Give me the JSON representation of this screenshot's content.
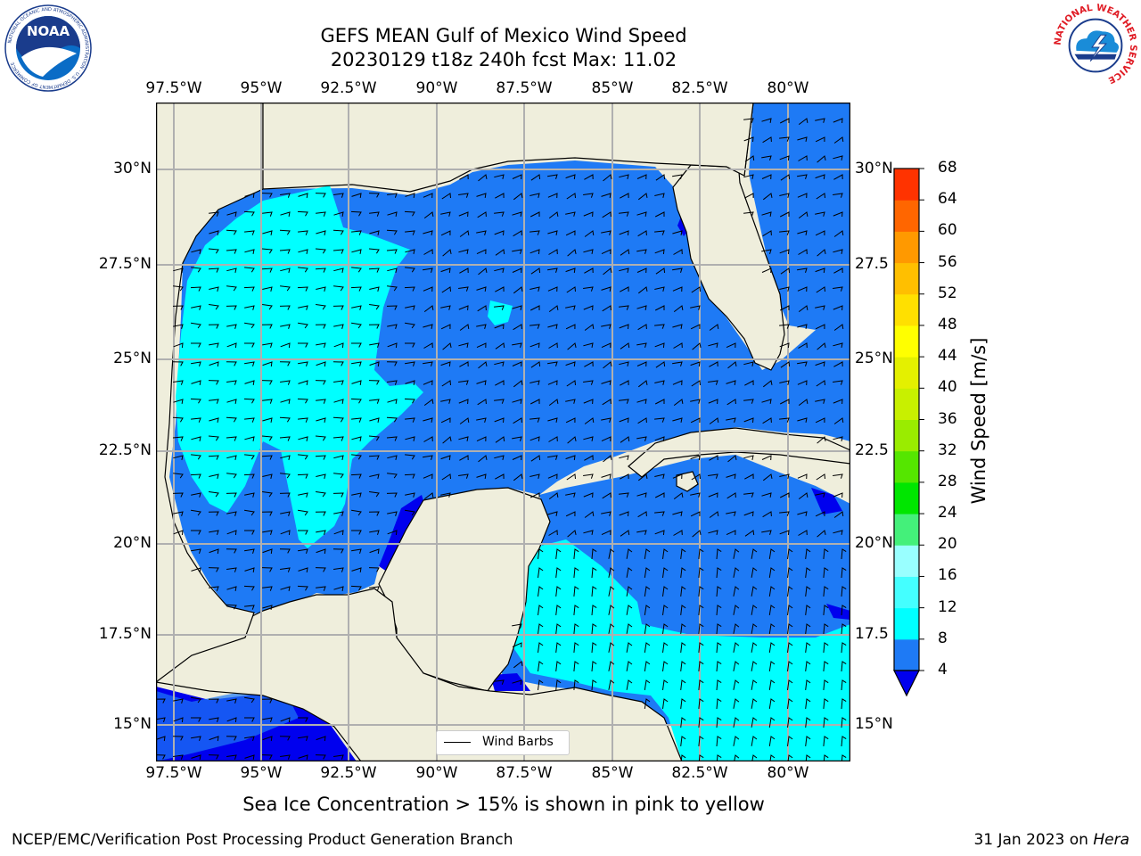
{
  "header": {
    "title_line1": "GEFS MEAN Gulf of Mexico Wind Speed",
    "title_line2": "20230129 t18z 240h fcst   Max: 11.02"
  },
  "logos": {
    "noaa_text": "NOAA",
    "noaa_ring": "NATIONAL OCEANIC AND ATMOSPHERIC ADMINISTRATION · U.S. DEPARTMENT OF COMMERCE",
    "nws_ring": "NATIONAL WEATHER SERVICE"
  },
  "map": {
    "lon_labels": [
      "97.5°W",
      "95°W",
      "92.5°W",
      "90°W",
      "87.5°W",
      "85°W",
      "82.5°W",
      "80°W"
    ],
    "lat_labels_left": [
      "30°N",
      "27.5°N",
      "25°N",
      "22.5°N",
      "20°N",
      "17.5°N",
      "15°N"
    ],
    "lat_labels_right": [
      "30°N",
      "27.5",
      "25°N",
      "22.5",
      "20°N",
      "17.5",
      "15°N"
    ],
    "legend_label": "Wind Barbs",
    "colors": {
      "land": "#efeedc",
      "band_4_8": "#1e7af5",
      "band_8_12": "#00ffff",
      "band_0_4": "#0000ee",
      "grid": "#b0b0b0"
    }
  },
  "colorbar": {
    "title": "Wind Speed [m/s]",
    "ticks": [
      "4",
      "8",
      "12",
      "16",
      "20",
      "24",
      "28",
      "32",
      "36",
      "40",
      "44",
      "48",
      "52",
      "56",
      "60",
      "64",
      "68"
    ],
    "colors": [
      "#1e7af5",
      "#00ffff",
      "#44ffff",
      "#99ffff",
      "#44f07a",
      "#00e600",
      "#55e600",
      "#9aec00",
      "#c8f000",
      "#e4f000",
      "#ffff00",
      "#ffe000",
      "#ffbf00",
      "#ff9900",
      "#ff6600",
      "#ff3300",
      "#ff0000"
    ],
    "extend_color": "#0000ee"
  },
  "footer": {
    "note": "Sea Ice Concentration > 15% is shown in pink to yellow",
    "left": "NCEP/EMC/Verification Post Processing Product Generation Branch",
    "right_date": "31 Jan 2023 on ",
    "right_host": "Hera"
  }
}
